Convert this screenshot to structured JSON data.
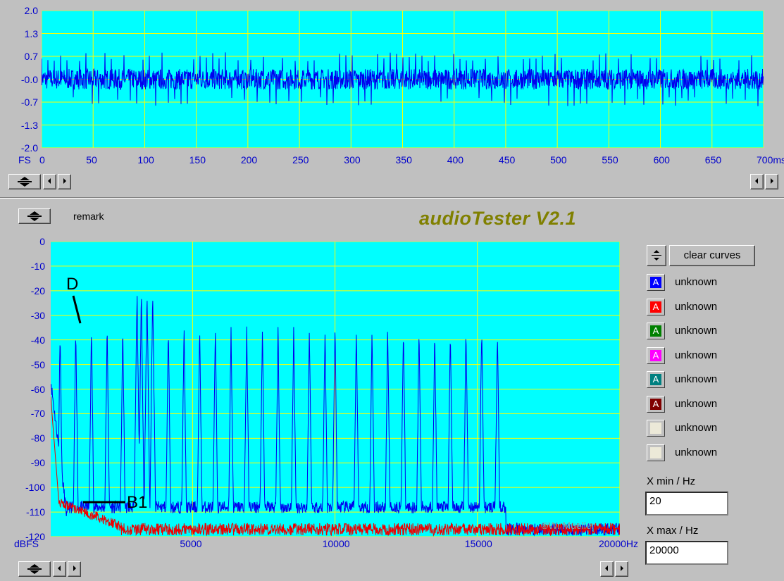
{
  "app": {
    "title": "audioTester V2.1",
    "remark_label": "remark"
  },
  "chart_data": [
    {
      "type": "line",
      "title": "",
      "xlabel": "ms",
      "ylabel": "FS",
      "xlim": [
        0,
        700
      ],
      "ylim": [
        -2.0,
        2.0
      ],
      "x_ticks": [
        "0",
        "50",
        "100",
        "150",
        "200",
        "250",
        "300",
        "350",
        "400",
        "450",
        "500",
        "550",
        "600",
        "650",
        "700ms"
      ],
      "y_ticks": [
        "2.0",
        "1.3",
        "0.7",
        "-0.0",
        "-0.7",
        "-1.3",
        "-2.0"
      ],
      "y_unit_label": "FS",
      "series": [
        {
          "color": "#0000ee",
          "description_values": {
            "amplitude_rms_approx": 0.3,
            "peak_approx": 0.75
          }
        }
      ],
      "grid": true,
      "background": "#00ffff",
      "grid_color": "#ffff00"
    },
    {
      "type": "line",
      "title": "",
      "xlabel": "Hz",
      "ylabel": "dBFS",
      "xlim": [
        20,
        20000
      ],
      "ylim": [
        -120,
        0
      ],
      "x_ticks": [
        "5000",
        "10000",
        "15000",
        "20000Hz"
      ],
      "y_ticks": [
        "0",
        "-10",
        "-20",
        "-30",
        "-40",
        "-50",
        "-60",
        "-70",
        "-80",
        "-90",
        "-100",
        "-110",
        "-120"
      ],
      "y_unit_label": "dBFS",
      "annotations": [
        {
          "text": "D"
        },
        {
          "text": "B1"
        }
      ],
      "watermark": "©W. Mueller",
      "grid": true,
      "background": "#00ffff",
      "grid_color": "#ffff00",
      "series": [
        {
          "color": "#0000ee",
          "peaks_x": [
            350,
            900,
            1450,
            2000,
            2550,
            3050,
            3200,
            3400,
            3600,
            4150,
            4700,
            5250,
            5800,
            6350,
            6900,
            7450,
            8000,
            8550,
            9100,
            9650,
            10000,
            10750,
            11300,
            11850,
            12400,
            12950,
            13500,
            14050,
            14600,
            15150,
            15700
          ],
          "peaks_y": [
            -35,
            -35,
            -35,
            -35,
            -35,
            -20,
            -20,
            -20,
            -20,
            -35,
            -35,
            -35,
            -35,
            -35,
            -35,
            -35,
            -35,
            -35,
            -35,
            -35,
            -34,
            -35,
            -35,
            -35,
            -35,
            -35,
            -35,
            -35,
            -35,
            -34,
            -35
          ],
          "floor_db": -108
        },
        {
          "color": "#ee0000",
          "floor_db": -117
        }
      ]
    }
  ],
  "legend": {
    "clear_label": "clear curves",
    "items": [
      {
        "letter": "A",
        "color": "#0000ff",
        "label": "unknown"
      },
      {
        "letter": "A",
        "color": "#ff0000",
        "label": "unknown"
      },
      {
        "letter": "A",
        "color": "#008000",
        "label": "unknown"
      },
      {
        "letter": "A",
        "color": "#ff00ff",
        "label": "unknown"
      },
      {
        "letter": "A",
        "color": "#008080",
        "label": "unknown"
      },
      {
        "letter": "A",
        "color": "#800000",
        "label": "unknown"
      },
      {
        "letter": "",
        "color": "#ece9d8",
        "label": "unknown"
      },
      {
        "letter": "",
        "color": "#ece9d8",
        "label": "unknown"
      }
    ]
  },
  "controls": {
    "xmin_label": "X min / Hz",
    "xmin_value": "20",
    "xmax_label": "X max / Hz",
    "xmax_value": "20000"
  }
}
